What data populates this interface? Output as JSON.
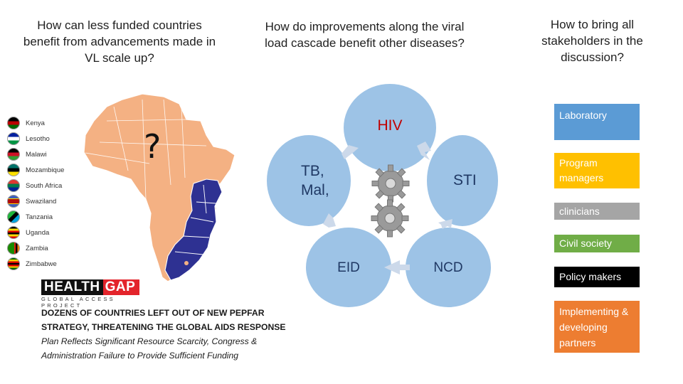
{
  "questions": {
    "q1": "How can less funded countries benefit from advancements made in VL scale up?",
    "q2": "How do improvements along the viral load cascade benefit other diseases?",
    "q3": "How to bring all stakeholders in the discussion?"
  },
  "map": {
    "question_mark": "?",
    "countries": [
      "Kenya",
      "Lesotho",
      "Malawi",
      "Mozambique",
      "South Africa",
      "Swaziland",
      "Tanzania",
      "Uganda",
      "Zambia",
      "Zimbabwe"
    ],
    "colors": {
      "continent": "#f4b183",
      "highlight": "#2e3192"
    }
  },
  "logo": {
    "health": "HEALTH",
    "gap": "GAP",
    "subtitle": "GLOBAL ACCESS PROJECT"
  },
  "news": {
    "headline": "DOZENS OF COUNTRIES LEFT OUT OF NEW PEPFAR STRATEGY, THREATENING THE GLOBAL AIDS RESPONSE",
    "subhead": "Plan Reflects Significant Resource Scarcity, Congress & Administration Failure to Provide Sufficient Funding"
  },
  "cycle": {
    "center": "HIV",
    "nodes": {
      "tb": "TB, Mal,",
      "sti": "STI",
      "eid": "EID",
      "ncd": "NCD"
    }
  },
  "stakeholders": {
    "laboratory": "Laboratory",
    "program_managers": "Program managers",
    "clinicians": "clinicians",
    "civil_society": "Civil society",
    "policy_makers": "Policy makers",
    "implementing_partners": "Implementing & developing partners"
  }
}
